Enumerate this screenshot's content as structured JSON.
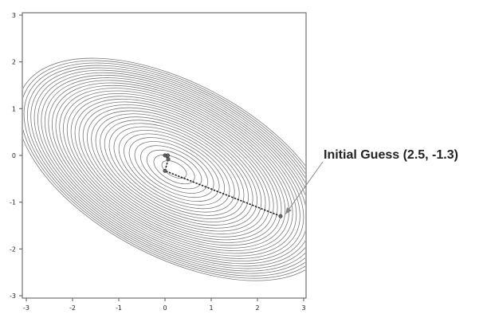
{
  "chart_data": {
    "type": "contour",
    "xlim": [
      -3,
      3
    ],
    "ylim": [
      -3,
      3
    ],
    "x_ticks": [
      -3,
      -2,
      -1,
      0,
      1,
      2,
      3
    ],
    "y_ticks": [
      -3,
      -2,
      -1,
      0,
      1,
      2,
      3
    ],
    "x_tick_labels": [
      "-3",
      "-2",
      "-1",
      "0",
      "1",
      "2",
      "3"
    ],
    "y_tick_labels": [
      "-3",
      "-2",
      "-1",
      "0",
      "1",
      "2",
      "3"
    ],
    "contour_center": [
      0.2,
      -0.3
    ],
    "path_points": [
      {
        "x": 2.5,
        "y": -1.3
      },
      {
        "x": 0.0,
        "y": -0.33
      },
      {
        "x": 0.07,
        "y": -0.08
      },
      {
        "x": 0.0,
        "y": 0.0
      },
      {
        "x": 0.06,
        "y": 0.0
      }
    ],
    "annotation": {
      "text": "Initial Guess (2.5, -1.3)",
      "x": 2.5,
      "y": -1.3
    },
    "colors": {
      "contour": "#7a7a7a",
      "path": "#222222",
      "frame": "#555555"
    }
  }
}
